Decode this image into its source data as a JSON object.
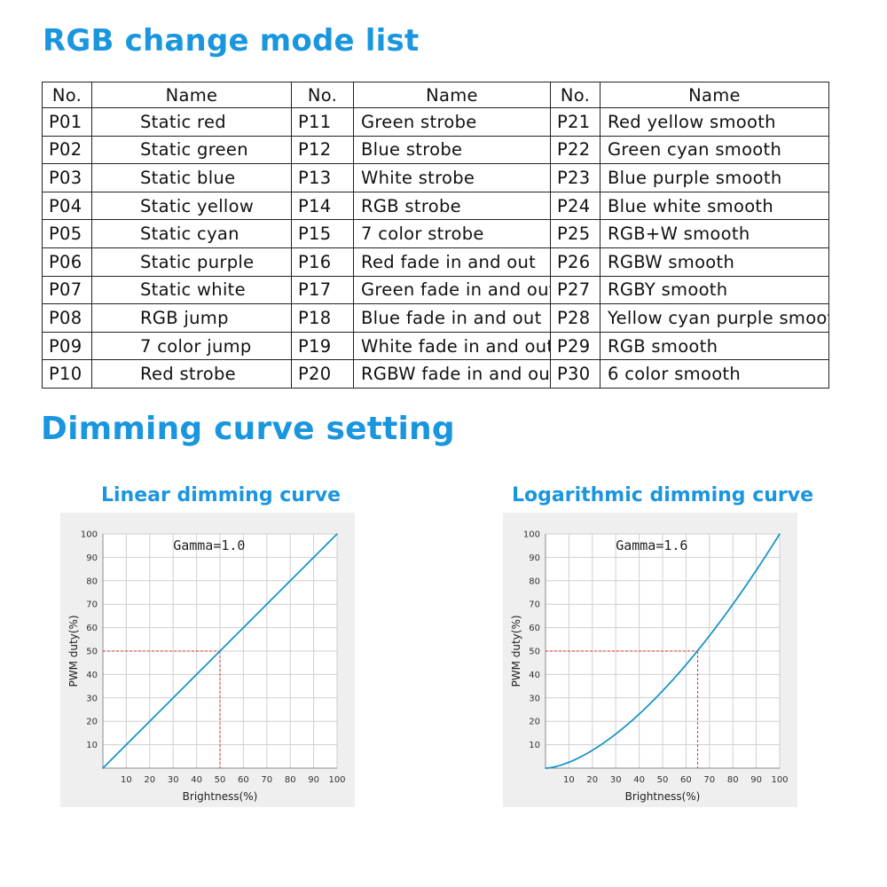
{
  "heading_modes": "RGB change mode list",
  "heading_dimming": "Dimming curve setting",
  "table": {
    "headers": [
      "No.",
      "Name",
      "No.",
      "Name",
      "No.",
      "Name"
    ],
    "rows": [
      [
        "P01",
        "Static red",
        "P11",
        "Green strobe",
        "P21",
        "Red yellow smooth"
      ],
      [
        "P02",
        "Static green",
        "P12",
        "Blue strobe",
        "P22",
        "Green cyan smooth"
      ],
      [
        "P03",
        "Static blue",
        "P13",
        "White strobe",
        "P23",
        "Blue purple smooth"
      ],
      [
        "P04",
        "Static yellow",
        "P14",
        "RGB strobe",
        "P24",
        "Blue white smooth"
      ],
      [
        "P05",
        "Static cyan",
        "P15",
        "7 color strobe",
        "P25",
        "RGB+W smooth"
      ],
      [
        "P06",
        "Static purple",
        "P16",
        "Red fade in and out",
        "P26",
        "RGBW smooth"
      ],
      [
        "P07",
        "Static white",
        "P17",
        "Green fade in and out",
        "P27",
        "RGBY smooth"
      ],
      [
        "P08",
        "RGB jump",
        "P18",
        "Blue fade in and out",
        "P28",
        "Yellow cyan purple smooth"
      ],
      [
        "P09",
        "7 color jump",
        "P19",
        "White fade in and out",
        "P29",
        "RGB smooth"
      ],
      [
        "P10",
        "Red strobe",
        "P20",
        "RGBW fade in and out",
        "P30",
        "6 color smooth"
      ]
    ]
  },
  "colors": {
    "accent": "#1a96df",
    "curve": "#1a96c8",
    "marker": "#d9332b",
    "panel": "#efefef",
    "grid": "#cfcfcf"
  },
  "chart_data": [
    {
      "type": "line",
      "title": "Linear dimming curve",
      "annotation": "Gamma=1.0",
      "gamma": 1.0,
      "xlabel": "Brightness(%)",
      "ylabel": "PWM duty(%)",
      "xlim": [
        0,
        100
      ],
      "ylim": [
        0,
        100
      ],
      "x_ticks": [
        "10",
        "20",
        "30",
        "40",
        "50",
        "60",
        "70",
        "80",
        "90",
        "100"
      ],
      "y_ticks": [
        "10",
        "20",
        "30",
        "40",
        "50",
        "60",
        "70",
        "80",
        "90",
        "100"
      ],
      "x": [
        0,
        10,
        20,
        30,
        40,
        50,
        60,
        70,
        80,
        90,
        100
      ],
      "y": [
        0,
        10,
        20,
        30,
        40,
        50,
        60,
        70,
        80,
        90,
        100
      ],
      "marker_point": {
        "x": 50,
        "y": 50
      },
      "grid": true
    },
    {
      "type": "line",
      "title": "Logarithmic dimming curve",
      "annotation": "Gamma=1.6",
      "gamma": 1.6,
      "xlabel": "Brightness(%)",
      "ylabel": "PWM duty(%)",
      "xlim": [
        0,
        100
      ],
      "ylim": [
        0,
        100
      ],
      "x_ticks": [
        "10",
        "20",
        "30",
        "40",
        "50",
        "60",
        "70",
        "80",
        "90",
        "100"
      ],
      "y_ticks": [
        "10",
        "20",
        "30",
        "40",
        "50",
        "60",
        "70",
        "80",
        "90",
        "100"
      ],
      "x": [
        0,
        10,
        20,
        30,
        40,
        50,
        60,
        70,
        80,
        90,
        100
      ],
      "y": [
        0,
        2.5,
        7.6,
        14.6,
        23.1,
        33.0,
        44.2,
        56.5,
        70.0,
        84.5,
        100
      ],
      "marker_point": {
        "x": 65,
        "y": 50
      },
      "grid": true
    }
  ]
}
